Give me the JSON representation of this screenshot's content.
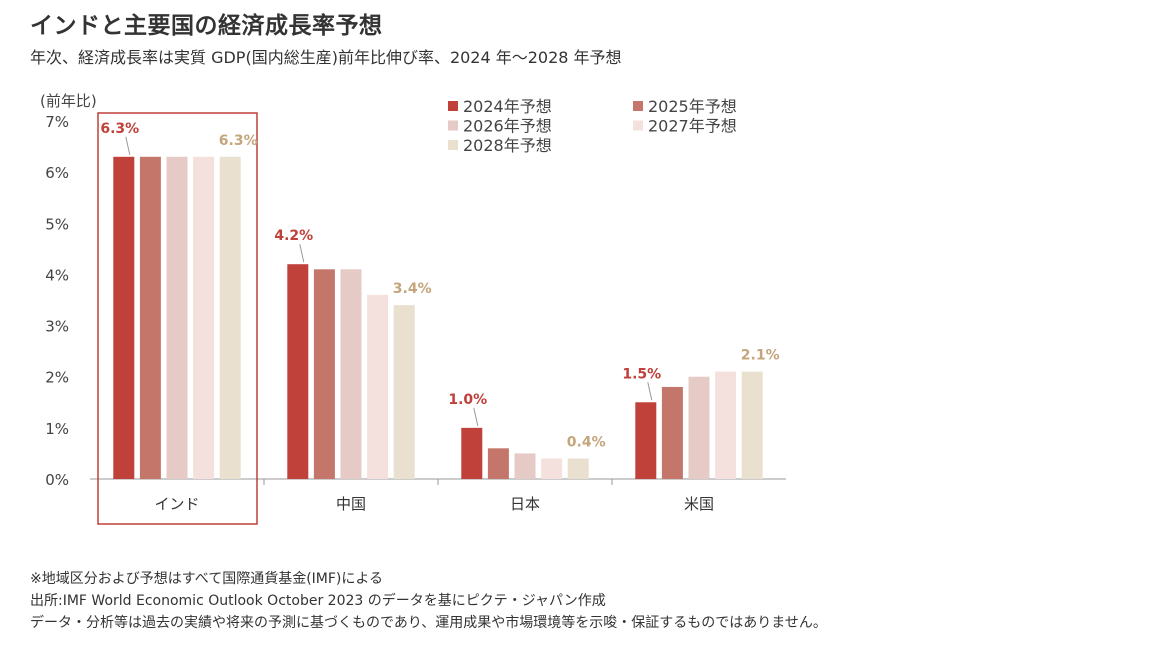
{
  "title": "インドと主要国の経済成長率予想",
  "subtitle": "年次、経済成長率は実質 GDP(国内総生産)前年比伸び率、2024 年～2028 年予想",
  "notes": [
    "※地域区分および予想はすべて国際通貨基金(IMF)による",
    "出所:IMF World Economic Outlook October 2023 のデータを基にピクテ・ジャパン作成",
    "データ・分析等は過去の実績や将来の予測に基づくものであり、運用成果や市場環境等を示唆・保証するものではありません。"
  ],
  "colors": {
    "series": [
      "#c0403a",
      "#c4766a",
      "#e5cac6",
      "#f4e0dd",
      "#e9e0cf"
    ],
    "label_first": "#c0403a",
    "label_last": "#c4a57c",
    "highlight_box": "#c0403a",
    "axis": "#999999"
  },
  "chart_data": {
    "type": "bar",
    "ylabel": "(前年比)",
    "ylim": [
      0,
      7
    ],
    "yticks": [
      "0%",
      "1%",
      "2%",
      "3%",
      "4%",
      "5%",
      "6%",
      "7%"
    ],
    "categories": [
      "インド",
      "中国",
      "日本",
      "米国"
    ],
    "highlight_category": "インド",
    "legend_position": "top-right",
    "series": [
      {
        "name": "2024年予想",
        "values": [
          6.3,
          4.2,
          1.0,
          1.5
        ]
      },
      {
        "name": "2025年予想",
        "values": [
          6.3,
          4.1,
          0.6,
          1.8
        ]
      },
      {
        "name": "2026年予想",
        "values": [
          6.3,
          4.1,
          0.5,
          2.0
        ]
      },
      {
        "name": "2027年予想",
        "values": [
          6.3,
          3.6,
          0.4,
          2.1
        ]
      },
      {
        "name": "2028年予想",
        "values": [
          6.3,
          3.4,
          0.4,
          2.1
        ]
      }
    ],
    "data_labels": [
      [
        "6.3%",
        "4.2%",
        "1.0%",
        "1.5%"
      ],
      [
        "6.3%",
        "3.4%",
        "0.4%",
        "2.1%"
      ]
    ]
  }
}
